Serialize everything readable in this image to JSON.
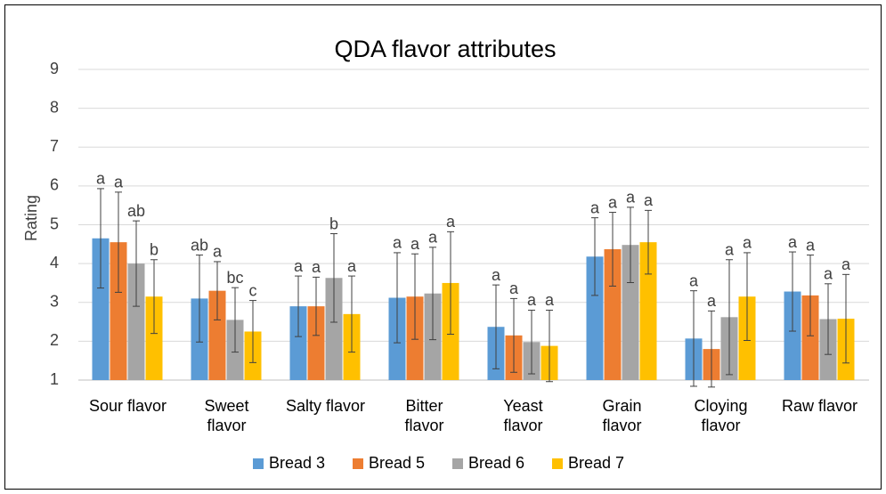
{
  "chart_data": {
    "type": "bar",
    "title": "QDA flavor attributes",
    "y_label": "Rating",
    "categories": [
      "Sour flavor",
      "Sweet\nflavor",
      "Salty flavor",
      "Bitter\nflavor",
      "Yeast\nflavor",
      "Grain\nflavor",
      "Cloying\nflavor",
      "Raw flavor"
    ],
    "series": [
      {
        "name": "Bread 3",
        "color": "#5b9bd5",
        "values": [
          4.65,
          3.1,
          2.9,
          3.12,
          2.37,
          4.18,
          2.07,
          3.28
        ],
        "errors": [
          1.28,
          1.12,
          0.78,
          1.16,
          1.08,
          1.0,
          1.23,
          1.02
        ],
        "letters": [
          "a",
          "ab",
          "a",
          "a",
          "a",
          "a",
          "a",
          "a"
        ]
      },
      {
        "name": "Bread 5",
        "color": "#ed7d31",
        "values": [
          4.55,
          3.3,
          2.9,
          3.15,
          2.15,
          4.37,
          1.8,
          3.18
        ],
        "errors": [
          1.29,
          0.75,
          0.75,
          1.1,
          0.95,
          0.95,
          0.98,
          1.04
        ],
        "letters": [
          "a",
          "a",
          "a",
          "a",
          "a",
          "a",
          "a",
          "a"
        ]
      },
      {
        "name": "Bread 6",
        "color": "#a5a5a5",
        "values": [
          4.0,
          2.55,
          3.63,
          3.23,
          1.98,
          4.48,
          2.62,
          2.57
        ],
        "errors": [
          1.1,
          0.83,
          1.14,
          1.19,
          0.82,
          0.97,
          1.48,
          0.91
        ],
        "letters": [
          "ab",
          "bc",
          "b",
          "a",
          "a",
          "a",
          "a",
          "a"
        ]
      },
      {
        "name": "Bread 7",
        "color": "#ffc000",
        "values": [
          3.15,
          2.25,
          2.7,
          3.5,
          1.88,
          4.55,
          3.15,
          2.58
        ],
        "errors": [
          0.95,
          0.8,
          0.98,
          1.32,
          0.92,
          0.82,
          1.13,
          1.14
        ],
        "letters": [
          "b",
          "c",
          "a",
          "a",
          "a",
          "a",
          "a",
          "a"
        ]
      }
    ],
    "ylim": [
      1,
      9
    ],
    "yticks": [
      1,
      2,
      3,
      4,
      5,
      6,
      7,
      8,
      9
    ],
    "grid": true,
    "legend": "bottom"
  }
}
